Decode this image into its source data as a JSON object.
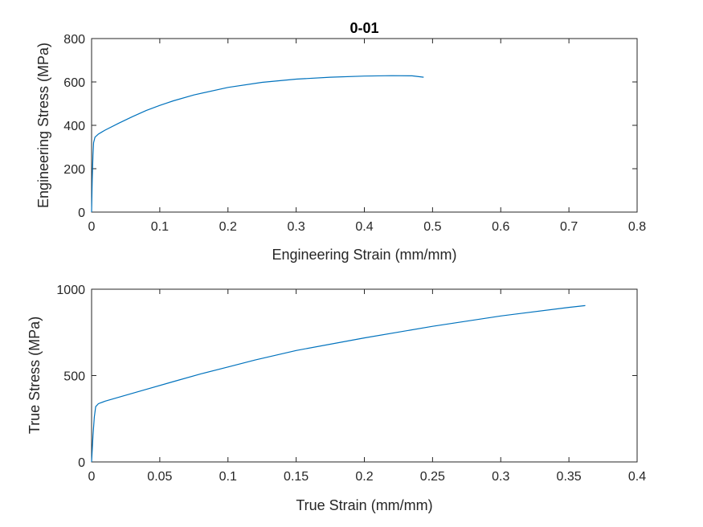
{
  "chart_data": [
    {
      "type": "line",
      "title": "0-01",
      "xlabel": "Engineering Strain (mm/mm)",
      "ylabel": "Engineering Stress (MPa)",
      "xlim": [
        0,
        0.8
      ],
      "ylim": [
        0,
        800
      ],
      "xticks": [
        0,
        0.1,
        0.2,
        0.3,
        0.4,
        0.5,
        0.6,
        0.7,
        0.8
      ],
      "yticks": [
        0,
        200,
        400,
        600,
        800
      ],
      "xtick_labels": [
        "0",
        "0.1",
        "0.2",
        "0.3",
        "0.4",
        "0.5",
        "0.6",
        "0.7",
        "0.8"
      ],
      "ytick_labels": [
        "0",
        "200",
        "400",
        "600",
        "800"
      ],
      "grid": false,
      "series": [
        {
          "color": "#0072BD",
          "x": [
            0,
            0.001,
            0.002,
            0.003,
            0.005,
            0.01,
            0.02,
            0.04,
            0.06,
            0.08,
            0.1,
            0.12,
            0.15,
            0.2,
            0.25,
            0.3,
            0.35,
            0.4,
            0.44,
            0.47,
            0.487
          ],
          "y": [
            0,
            150,
            260,
            320,
            345,
            360,
            378,
            410,
            440,
            468,
            492,
            513,
            540,
            575,
            598,
            613,
            622,
            627,
            629,
            628,
            622
          ]
        }
      ]
    },
    {
      "type": "line",
      "title": "",
      "xlabel": "True Strain (mm/mm)",
      "ylabel": "True Stress (MPa)",
      "xlim": [
        0,
        0.4
      ],
      "ylim": [
        0,
        1000
      ],
      "xticks": [
        0,
        0.05,
        0.1,
        0.15,
        0.2,
        0.25,
        0.3,
        0.35,
        0.4
      ],
      "yticks": [
        0,
        500,
        1000
      ],
      "xtick_labels": [
        "0",
        "0.05",
        "0.1",
        "0.15",
        "0.2",
        "0.25",
        "0.3",
        "0.35",
        "0.4"
      ],
      "ytick_labels": [
        "0",
        "500",
        "1000"
      ],
      "grid": false,
      "series": [
        {
          "color": "#0072BD",
          "x": [
            0,
            0.001,
            0.002,
            0.003,
            0.005,
            0.01,
            0.02,
            0.04,
            0.06,
            0.08,
            0.1,
            0.12,
            0.15,
            0.2,
            0.25,
            0.3,
            0.35,
            0.362
          ],
          "y": [
            0,
            150,
            260,
            320,
            337,
            352,
            375,
            420,
            465,
            510,
            550,
            590,
            645,
            718,
            785,
            845,
            895,
            905
          ]
        }
      ]
    }
  ]
}
